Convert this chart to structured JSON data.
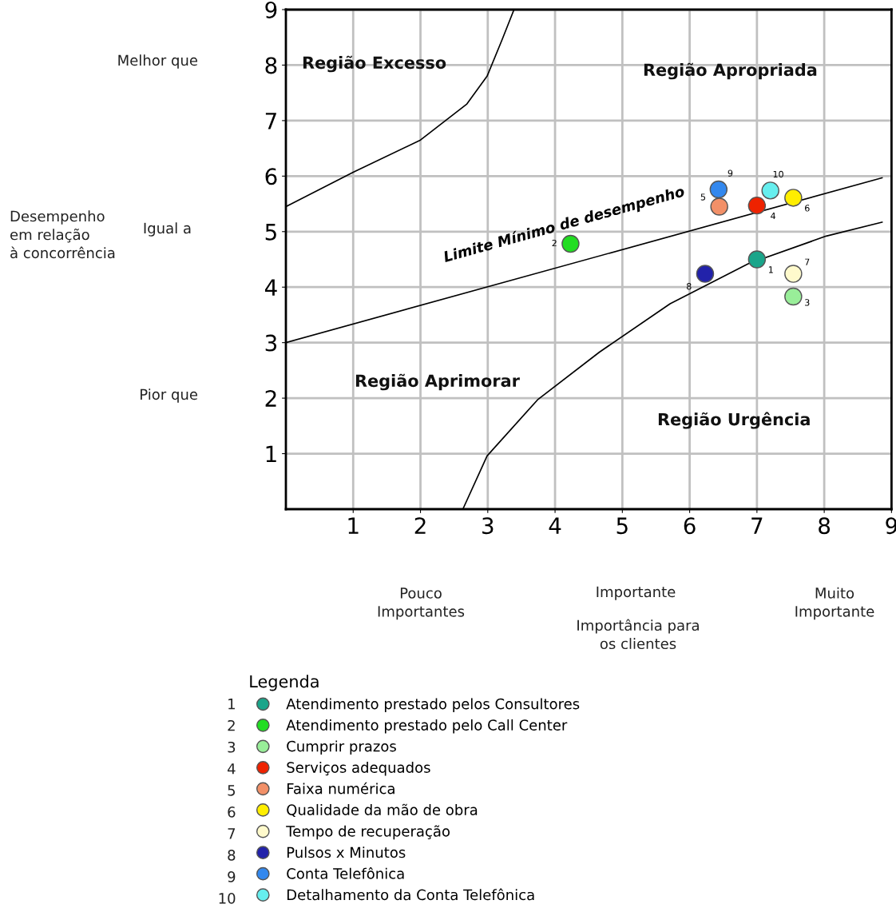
{
  "chart_data": {
    "type": "scatter",
    "legend_title": "Legenda",
    "xlim": [
      0,
      9
    ],
    "ylim": [
      0,
      9
    ],
    "xticks": [
      1,
      2,
      3,
      4,
      5,
      6,
      7,
      8,
      9
    ],
    "yticks": [
      1,
      2,
      3,
      4,
      5,
      6,
      7,
      8,
      9
    ],
    "grid": true,
    "legend": "bottom",
    "marker": "circle",
    "series": [
      {
        "name": "Atendimento prestado pelos Consultores",
        "color": "#1aa58a",
        "x": [
          7.0
        ],
        "values": [
          4.5
        ]
      },
      {
        "name": "Atendimento prestado pelo Call Center",
        "color": "#22dd22",
        "x": [
          4.23
        ],
        "values": [
          4.78
        ]
      },
      {
        "name": "Cumprir prazos",
        "color": "#99ee99",
        "x": [
          7.54
        ],
        "values": [
          3.83
        ]
      },
      {
        "name": "Serviços adequados",
        "color": "#ee2200",
        "x": [
          7.0
        ],
        "values": [
          5.47
        ]
      },
      {
        "name": "Faixa numérica",
        "color": "#f29068",
        "x": [
          6.44
        ],
        "values": [
          5.45
        ]
      },
      {
        "name": "Qualidade da mão de obra",
        "color": "#ffee00",
        "x": [
          7.54
        ],
        "values": [
          5.61
        ]
      },
      {
        "name": "Tempo de recuperação",
        "color": "#fffacc",
        "x": [
          7.54
        ],
        "values": [
          4.24
        ]
      },
      {
        "name": "Pulsos x Minutos",
        "color": "#2222aa",
        "x": [
          6.23
        ],
        "values": [
          4.24
        ]
      },
      {
        "name": "Conta Telefônica",
        "color": "#3388ee",
        "x": [
          6.43
        ],
        "values": [
          5.76
        ]
      },
      {
        "name": "Detalhamento da Conta Telefônica",
        "color": "#66eeee",
        "x": [
          7.2
        ],
        "values": [
          5.74
        ]
      },
      {
        "type": "line",
        "marker": "none",
        "name": "Limite Mínimo de desempenho",
        "color": "#000000",
        "x": [
          0,
          8.86
        ],
        "values": [
          3.0,
          5.97
        ]
      },
      {
        "type": "line",
        "marker": "none",
        "color": "#000000",
        "x": [
          0,
          1,
          2,
          2.69,
          2.99,
          3.21,
          3.39
        ],
        "values": [
          5.45,
          6.07,
          6.65,
          7.3,
          7.8,
          8.45,
          9.0
        ]
      },
      {
        "type": "line",
        "marker": "none",
        "color": "#000000",
        "x": [
          2.63,
          2.99,
          3.74,
          4.66,
          5.71,
          6.87,
          8.03,
          8.86
        ],
        "values": [
          0,
          0.96,
          1.97,
          2.83,
          3.7,
          4.42,
          4.92,
          5.17
        ]
      }
    ],
    "annotations": [
      "Desempenho\nem relação\nà concorrência",
      "Importância para\nos clientes",
      "Melhor que",
      "Igual a",
      "Pior que",
      "Pouco\nImportantes",
      "Importante",
      "Muito\nImportante",
      "Região Excesso",
      "Região Apropriada",
      "Região Aprimorar",
      "Região Urgência",
      {
        "text": "1",
        "x": 7.0,
        "y": 4.5
      },
      {
        "text": "2",
        "x": 4.23,
        "y": 4.78
      },
      {
        "text": "3",
        "x": 7.54,
        "y": 3.83
      },
      {
        "text": "4",
        "x": 7.0,
        "y": 5.47
      },
      {
        "text": "5",
        "x": 6.44,
        "y": 5.45
      },
      {
        "text": "6",
        "x": 7.54,
        "y": 5.61
      },
      {
        "text": "7",
        "x": 7.54,
        "y": 4.24
      },
      {
        "text": "8",
        "x": 6.23,
        "y": 4.24
      },
      {
        "text": "9",
        "x": 6.43,
        "y": 5.76
      },
      {
        "text": "10",
        "x": 7.2,
        "y": 5.74
      }
    ]
  }
}
